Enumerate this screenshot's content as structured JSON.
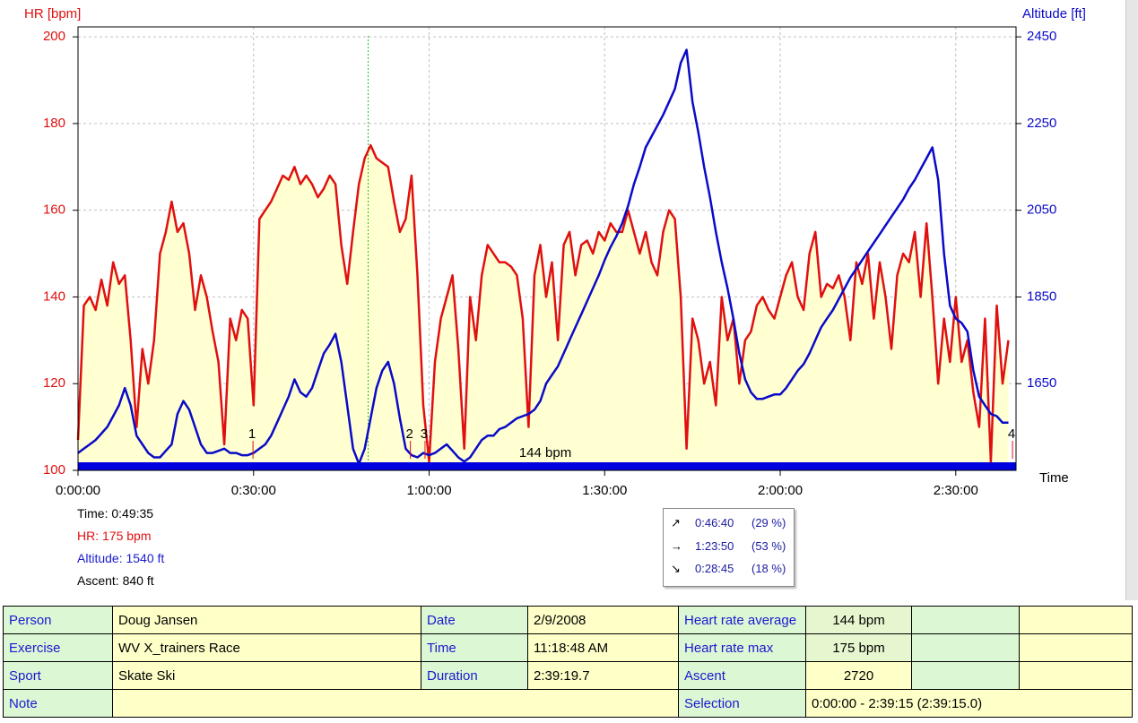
{
  "chart_data": {
    "type": "line",
    "y_label": "HR [bpm]",
    "y2_label": "Altitude [ft]",
    "x_label": "Time",
    "xlim": [
      0,
      160.3
    ],
    "xticks": [
      {
        "value": 0,
        "label": "0:00:00"
      },
      {
        "value": 30,
        "label": "0:30:00"
      },
      {
        "value": 60,
        "label": "1:00:00"
      },
      {
        "value": 90,
        "label": "1:30:00"
      },
      {
        "value": 120,
        "label": "2:00:00"
      },
      {
        "value": 150,
        "label": "2:30:00"
      }
    ],
    "ylim": [
      100,
      202.3
    ],
    "yticks": [
      100,
      120,
      140,
      160,
      180,
      200
    ],
    "y2lim": [
      1450,
      2473
    ],
    "y2ticks": [
      1650,
      1850,
      2050,
      2250,
      2450
    ],
    "grid": true,
    "x": [
      0,
      1,
      2,
      3,
      4,
      5,
      6,
      7,
      8,
      9,
      10,
      11,
      12,
      13,
      14,
      15,
      16,
      17,
      18,
      19,
      20,
      21,
      22,
      23,
      24,
      25,
      26,
      27,
      28,
      29,
      30,
      31,
      32,
      33,
      34,
      35,
      36,
      37,
      38,
      39,
      40,
      41,
      42,
      43,
      44,
      45,
      46,
      47,
      48,
      49,
      50,
      51,
      52,
      53,
      54,
      55,
      56,
      57,
      58,
      59,
      60,
      61,
      62,
      63,
      64,
      65,
      66,
      67,
      68,
      69,
      70,
      71,
      72,
      73,
      74,
      75,
      76,
      77,
      78,
      79,
      80,
      81,
      82,
      83,
      84,
      85,
      86,
      87,
      88,
      89,
      90,
      91,
      92,
      93,
      94,
      95,
      96,
      97,
      98,
      99,
      100,
      101,
      102,
      103,
      104,
      105,
      106,
      107,
      108,
      109,
      110,
      111,
      112,
      113,
      114,
      115,
      116,
      117,
      118,
      119,
      120,
      121,
      122,
      123,
      124,
      125,
      126,
      127,
      128,
      129,
      130,
      131,
      132,
      133,
      134,
      135,
      136,
      137,
      138,
      139,
      140,
      141,
      142,
      143,
      144,
      145,
      146,
      147,
      148,
      149,
      150,
      151,
      152,
      153,
      154,
      155,
      156,
      157,
      158,
      159
    ],
    "series": [
      {
        "name": "HR",
        "color": "#e01010",
        "fill": "#ffffd2",
        "values": [
          107,
          138,
          140,
          137,
          144,
          138,
          148,
          143,
          145,
          130,
          110,
          128,
          120,
          130,
          150,
          155,
          162,
          155,
          157,
          150,
          137,
          145,
          140,
          132,
          125,
          106,
          135,
          130,
          137,
          135,
          115,
          158,
          160,
          162,
          165,
          168,
          167,
          170,
          166,
          168,
          166,
          163,
          165,
          168,
          166,
          152,
          143,
          155,
          166,
          172,
          175,
          172,
          171,
          170,
          162,
          155,
          158,
          168,
          145,
          115,
          102,
          125,
          135,
          140,
          145,
          128,
          105,
          140,
          130,
          145,
          152,
          150,
          148,
          148,
          147,
          145,
          135,
          110,
          145,
          152,
          140,
          148,
          130,
          152,
          155,
          145,
          152,
          153,
          150,
          155,
          153,
          157,
          155,
          155,
          160,
          155,
          150,
          155,
          148,
          145,
          155,
          160,
          158,
          140,
          105,
          135,
          130,
          120,
          125,
          115,
          140,
          130,
          135,
          120,
          130,
          132,
          138,
          140,
          137,
          135,
          140,
          145,
          148,
          140,
          137,
          150,
          155,
          140,
          143,
          142,
          145,
          140,
          130,
          148,
          143,
          150,
          135,
          148,
          140,
          128,
          145,
          150,
          148,
          155,
          140,
          157,
          140,
          120,
          135,
          125,
          140,
          125,
          130,
          118,
          110,
          135,
          102,
          138,
          120,
          130
        ]
      },
      {
        "name": "Altitude",
        "color": "#0a0ac8",
        "axis": "y2",
        "values": [
          1490,
          1500,
          1510,
          1520,
          1535,
          1550,
          1575,
          1600,
          1640,
          1600,
          1530,
          1510,
          1490,
          1480,
          1480,
          1495,
          1510,
          1580,
          1610,
          1590,
          1550,
          1510,
          1490,
          1490,
          1495,
          1500,
          1490,
          1490,
          1485,
          1485,
          1490,
          1500,
          1510,
          1530,
          1560,
          1590,
          1620,
          1660,
          1630,
          1620,
          1640,
          1680,
          1720,
          1740,
          1765,
          1700,
          1600,
          1500,
          1465,
          1500,
          1570,
          1640,
          1680,
          1700,
          1650,
          1570,
          1500,
          1485,
          1480,
          1490,
          1485,
          1490,
          1500,
          1510,
          1495,
          1480,
          1470,
          1480,
          1500,
          1520,
          1530,
          1530,
          1545,
          1550,
          1560,
          1570,
          1575,
          1580,
          1590,
          1610,
          1650,
          1670,
          1690,
          1720,
          1750,
          1780,
          1810,
          1840,
          1870,
          1900,
          1935,
          1965,
          1990,
          2020,
          2060,
          2110,
          2150,
          2195,
          2220,
          2245,
          2270,
          2300,
          2330,
          2390,
          2420,
          2300,
          2230,
          2150,
          2080,
          2000,
          1930,
          1870,
          1800,
          1720,
          1660,
          1630,
          1615,
          1615,
          1620,
          1625,
          1625,
          1640,
          1660,
          1680,
          1695,
          1720,
          1750,
          1780,
          1800,
          1820,
          1845,
          1870,
          1895,
          1915,
          1935,
          1955,
          1975,
          1995,
          2015,
          2035,
          2055,
          2075,
          2100,
          2120,
          2145,
          2170,
          2195,
          2120,
          1950,
          1830,
          1800,
          1790,
          1770,
          1680,
          1620,
          1600,
          1580,
          1575,
          1560,
          1560
        ]
      }
    ],
    "markers": [
      "1",
      "2",
      "3",
      "4"
    ],
    "marker_x": [
      29.9,
      56.8,
      59.3,
      159.7
    ],
    "cursor_x": 49.58,
    "cursor_color": "#20c020",
    "average_label": "144 bpm",
    "selection_color": "#0000e0"
  },
  "readout": {
    "time": "Time: 0:49:35",
    "hr": "HR: 175 bpm",
    "altitude": "Altitude: 1540 ft",
    "ascent": "Ascent: 840 ft"
  },
  "slope": {
    "rows": [
      [
        "0:46:40",
        "(29 %)"
      ],
      [
        "1:23:50",
        "(53 %)"
      ],
      [
        "0:28:45",
        "(18 %)"
      ]
    ]
  },
  "table": {
    "rows": [
      [
        "Person",
        "Doug Jansen",
        "Date",
        "2/9/2008",
        "Heart rate average",
        "144 bpm"
      ],
      [
        "Exercise",
        "WV X_trainers Race",
        "Time",
        "11:18:48 AM",
        "Heart rate max",
        "175 bpm"
      ],
      [
        "Sport",
        "Skate Ski",
        "Duration",
        "2:39:19.7",
        "Ascent",
        "2720"
      ],
      [
        "Note",
        "Selection",
        "0:00:00 - 2:39:15 (2:39:15.0)"
      ]
    ]
  }
}
